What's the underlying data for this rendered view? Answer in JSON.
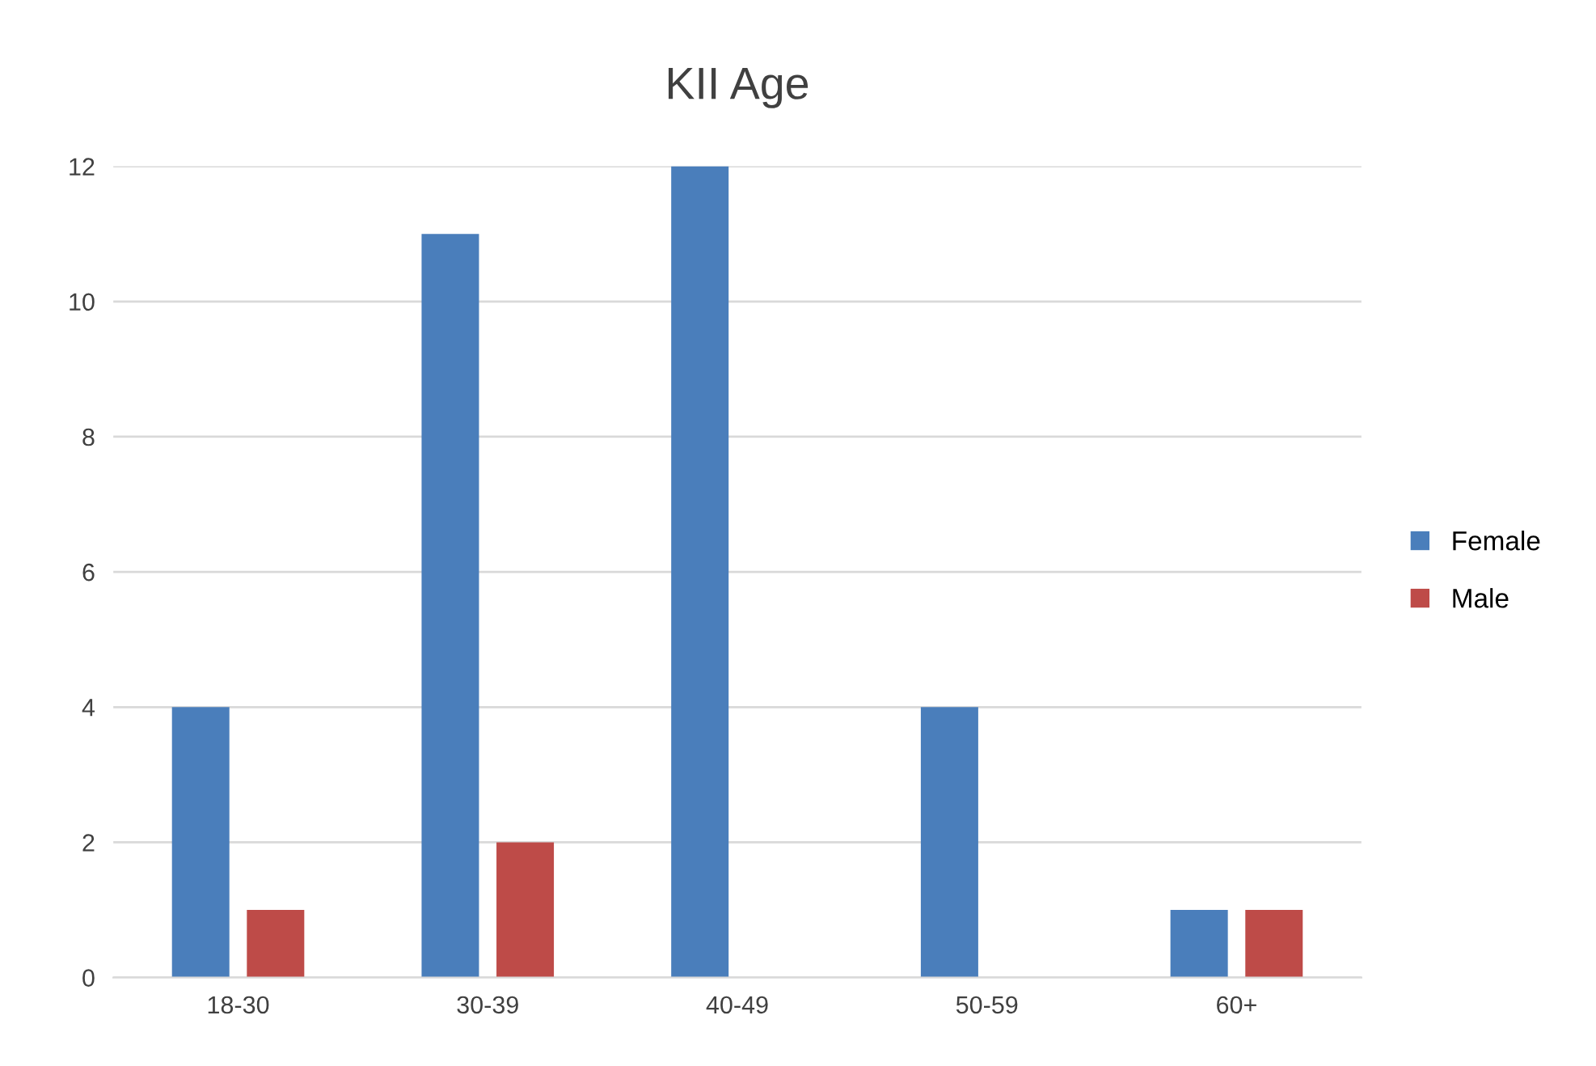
{
  "chart_data": {
    "type": "bar",
    "title": "KII Age",
    "categories": [
      "18-30",
      "30-39",
      "40-49",
      "50-59",
      "60+"
    ],
    "series": [
      {
        "name": "Female",
        "color": "#4a7ebb",
        "values": [
          4,
          11,
          12,
          4,
          1
        ]
      },
      {
        "name": "Male",
        "color": "#be4b48",
        "values": [
          1,
          2,
          0,
          0,
          1
        ]
      }
    ],
    "ylim": [
      0,
      12
    ],
    "yticks": [
      0,
      2,
      4,
      6,
      8,
      10,
      12
    ],
    "grid": "y",
    "legend": "right"
  }
}
